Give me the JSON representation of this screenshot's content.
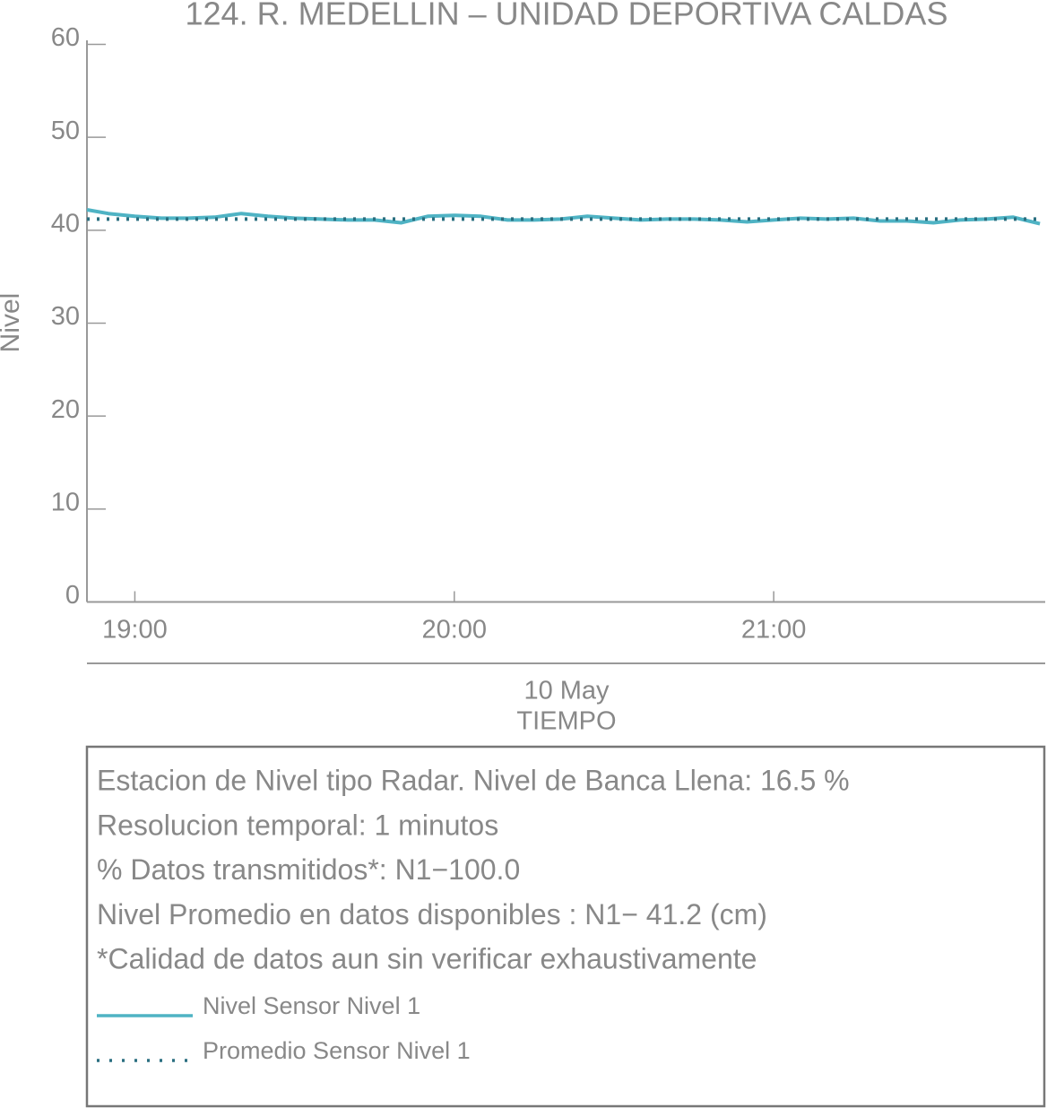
{
  "chart_data": {
    "type": "line",
    "title": "124. R. MEDELLIN – UNIDAD DEPORTIVA CALDAS",
    "y_label": "Nivel",
    "x_label": "TIEMPO",
    "x_sublabel": "10 May",
    "x": [
      "18:51",
      "18:55",
      "19:00",
      "19:05",
      "19:10",
      "19:15",
      "19:20",
      "19:25",
      "19:30",
      "19:35",
      "19:40",
      "19:45",
      "19:50",
      "19:55",
      "20:00",
      "20:05",
      "20:10",
      "20:15",
      "20:20",
      "20:25",
      "20:30",
      "20:35",
      "20:40",
      "20:45",
      "20:50",
      "20:55",
      "21:00",
      "21:05",
      "21:10",
      "21:15",
      "21:20",
      "21:25",
      "21:30",
      "21:35",
      "21:40",
      "21:45",
      "21:50"
    ],
    "series": [
      {
        "name": "Nivel Sensor Nivel 1",
        "color": "#4fb3c4",
        "style": "solid",
        "values": [
          42.2,
          41.8,
          41.5,
          41.3,
          41.3,
          41.4,
          41.8,
          41.5,
          41.3,
          41.2,
          41.1,
          41.1,
          40.8,
          41.5,
          41.6,
          41.5,
          41.1,
          41.1,
          41.2,
          41.5,
          41.3,
          41.1,
          41.2,
          41.2,
          41.1,
          40.9,
          41.1,
          41.3,
          41.2,
          41.3,
          41.0,
          41.0,
          40.8,
          41.1,
          41.2,
          41.4,
          40.7
        ]
      },
      {
        "name": "Promedio Sensor Nivel 1",
        "color": "#2a6f80",
        "style": "dotted",
        "values": [
          41.2,
          41.2,
          41.2,
          41.2,
          41.2,
          41.2,
          41.2,
          41.2,
          41.2,
          41.2,
          41.2,
          41.2,
          41.2,
          41.2,
          41.2,
          41.2,
          41.2,
          41.2,
          41.2,
          41.2,
          41.2,
          41.2,
          41.2,
          41.2,
          41.2,
          41.2,
          41.2,
          41.2,
          41.2,
          41.2,
          41.2,
          41.2,
          41.2,
          41.2,
          41.2,
          41.2,
          41.2
        ]
      }
    ],
    "xlim": [
      "18:51",
      "21:51"
    ],
    "xticks": [
      "19:00",
      "20:00",
      "21:00"
    ],
    "ylim": [
      0,
      60
    ],
    "yticks": [
      0,
      10,
      20,
      30,
      40,
      50,
      60
    ],
    "notes": [
      "Estacion de Nivel tipo Radar. Nivel de Banca Llena: 16.5 %",
      "Resolucion temporal: 1 minutos",
      "% Datos transmitidos*: N1−100.0",
      "Nivel Promedio en datos disponibles : N1− 41.2 (cm)",
      "*Calidad de datos aun sin verificar exhaustivamente"
    ]
  }
}
